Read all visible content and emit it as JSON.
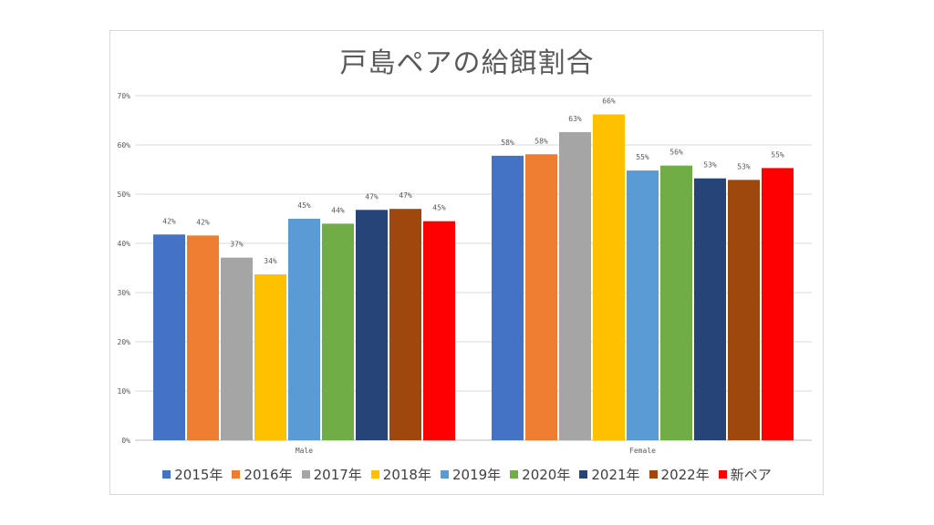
{
  "chart_data": {
    "type": "bar",
    "title": "戸島ペアの給餌割合",
    "categories": [
      "Male",
      "Female"
    ],
    "ylim": [
      0,
      70
    ],
    "yticks": [
      "0%",
      "10%",
      "20%",
      "30%",
      "40%",
      "50%",
      "60%",
      "70%"
    ],
    "grid": true,
    "legend_position": "bottom",
    "series": [
      {
        "name": "2015年",
        "color": "#4472C4",
        "values": [
          41.8,
          57.8
        ],
        "labels": [
          "42%",
          "58%"
        ]
      },
      {
        "name": "2016年",
        "color": "#ED7D31",
        "values": [
          41.6,
          58.1
        ],
        "labels": [
          "42%",
          "58%"
        ]
      },
      {
        "name": "2017年",
        "color": "#A5A5A5",
        "values": [
          37.1,
          62.6
        ],
        "labels": [
          "37%",
          "63%"
        ]
      },
      {
        "name": "2018年",
        "color": "#FFC000",
        "values": [
          33.7,
          66.2
        ],
        "labels": [
          "34%",
          "66%"
        ]
      },
      {
        "name": "2019年",
        "color": "#5B9BD5",
        "values": [
          45.0,
          54.8
        ],
        "labels": [
          "45%",
          "55%"
        ]
      },
      {
        "name": "2020年",
        "color": "#70AD47",
        "values": [
          44.0,
          55.8
        ],
        "labels": [
          "44%",
          "56%"
        ]
      },
      {
        "name": "2021年",
        "color": "#264478",
        "values": [
          46.8,
          53.2
        ],
        "labels": [
          "47%",
          "53%"
        ]
      },
      {
        "name": "2022年",
        "color": "#9E480E",
        "values": [
          47.0,
          52.9
        ],
        "labels": [
          "47%",
          "53%"
        ]
      },
      {
        "name": "新ペア",
        "color": "#FF0000",
        "values": [
          44.5,
          55.3
        ],
        "labels": [
          "45%",
          "55%"
        ]
      }
    ]
  }
}
